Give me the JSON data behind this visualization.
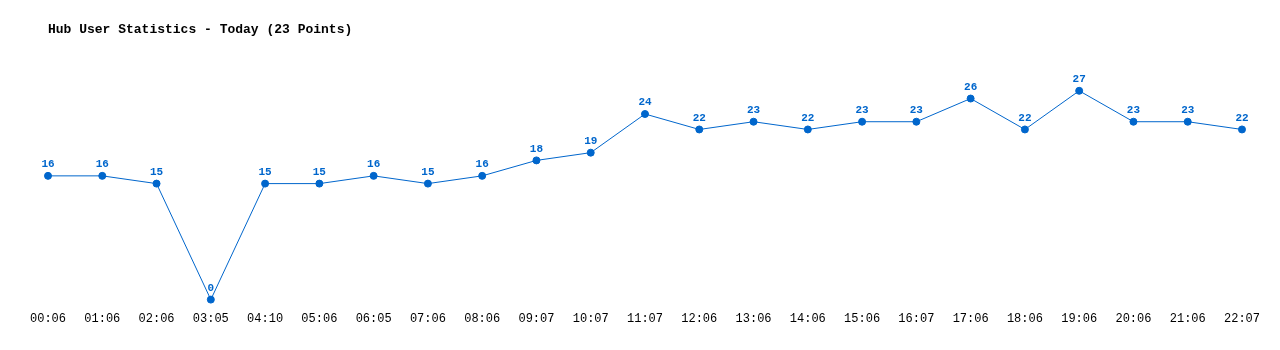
{
  "chart_data": {
    "type": "line",
    "title": "Hub User Statistics - Today (23 Points)",
    "categories": [
      "00:06",
      "01:06",
      "02:06",
      "03:05",
      "04:10",
      "05:06",
      "06:05",
      "07:06",
      "08:06",
      "09:07",
      "10:07",
      "11:07",
      "12:06",
      "13:06",
      "14:06",
      "15:06",
      "16:07",
      "17:06",
      "18:06",
      "19:06",
      "20:06",
      "21:06",
      "22:07"
    ],
    "series": [
      {
        "color": "#0066cc",
        "values": [
          16,
          16,
          15,
          0,
          15,
          15,
          16,
          15,
          16,
          18,
          19,
          24,
          22,
          23,
          22,
          23,
          23,
          26,
          22,
          27,
          23,
          23,
          22
        ]
      }
    ],
    "data_labels": true,
    "grid": false,
    "legend": false,
    "marker": "circle",
    "line_style": "solid",
    "tick_labels": "x"
  }
}
